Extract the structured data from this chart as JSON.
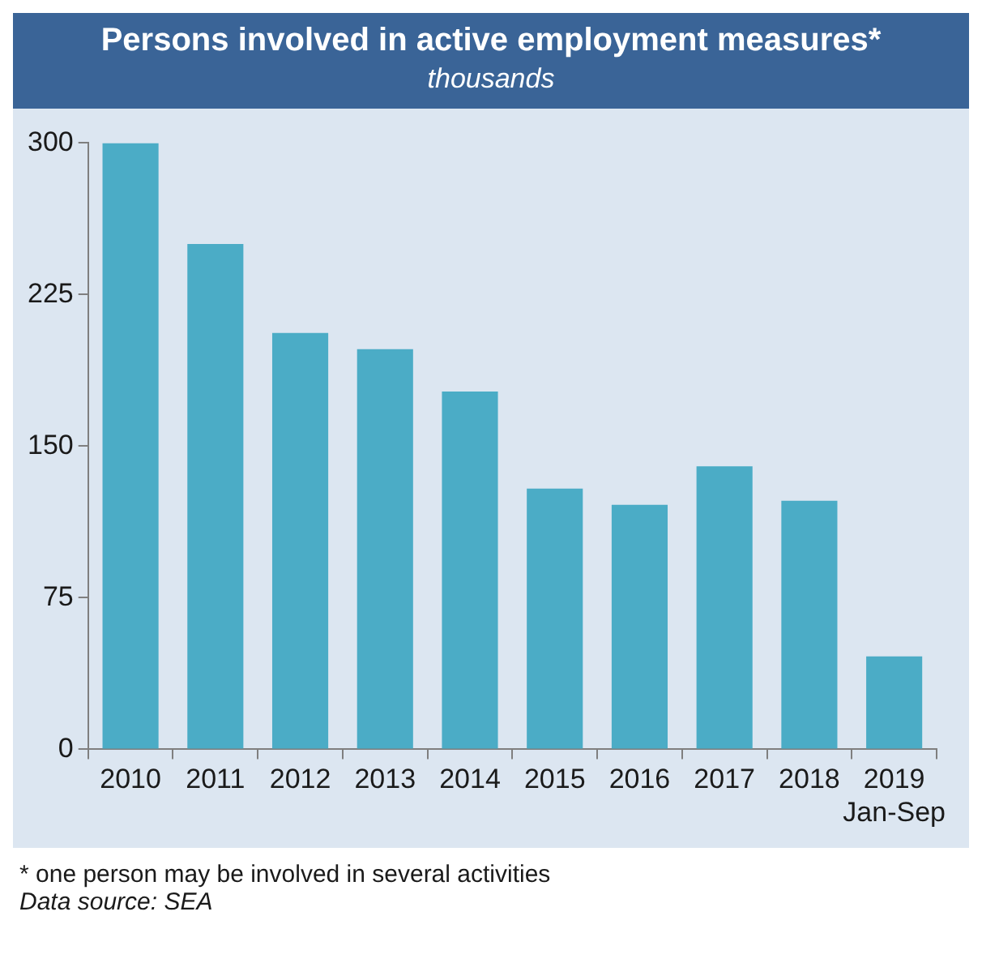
{
  "chart_data": {
    "type": "bar",
    "title": "Persons involved in active employment measures*",
    "subtitle": "thousands",
    "categories": [
      "2010",
      "2011",
      "2012",
      "2013",
      "2014",
      "2015",
      "2016",
      "2017",
      "2018",
      "2019\nJan-Sep"
    ],
    "values": [
      300,
      250,
      206,
      198,
      177,
      129,
      121,
      140,
      123,
      46
    ],
    "color": "#4bacc6",
    "ylim": [
      0,
      300
    ],
    "yticks": [
      0,
      75,
      150,
      225,
      300
    ],
    "grid": false,
    "legend": false,
    "annotations": [
      "*  one person may be involved in several activities",
      "Data source: SEA"
    ]
  }
}
